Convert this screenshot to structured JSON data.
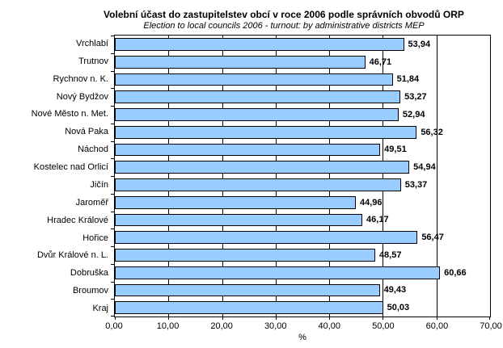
{
  "header": {
    "title": "Volební účast do zastupitelstev obcí v roce 2006 podle správních obvodů ORP",
    "subtitle": "Election to local councils 2006 - turnout: by administrative districts MEP"
  },
  "chart_data": {
    "type": "bar",
    "orientation": "horizontal",
    "title": "Volební účast do zastupitelstev obcí v roce 2006 podle správních obvodů ORP",
    "subtitle": "Election to local councils 2006 - turnout: by administrative districts MEP",
    "categories": [
      "Vrchlabí",
      "Trutnov",
      "Rychnov n. K.",
      "Nový Bydžov",
      "Nové Město n. Met.",
      "Nová Paka",
      "Náchod",
      "Kostelec nad Orlicí",
      "Jičín",
      "Jaroměř",
      "Hradec Králové",
      "Hořice",
      "Dvůr Králové n. L.",
      "Dobruška",
      "Broumov",
      "Kraj"
    ],
    "values": [
      53.94,
      46.71,
      51.84,
      53.27,
      52.94,
      56.32,
      49.51,
      54.94,
      53.37,
      44.96,
      46.17,
      56.47,
      48.57,
      60.66,
      49.43,
      50.03
    ],
    "value_labels": [
      "53,94",
      "46,71",
      "51,84",
      "53,27",
      "52,94",
      "56,32",
      "49,51",
      "54,94",
      "53,37",
      "44,96",
      "46,17",
      "56,47",
      "48,57",
      "60,66",
      "49,43",
      "50,03"
    ],
    "xlabel": "%",
    "ylabel": "",
    "xlim": [
      0,
      70
    ],
    "xticks": [
      0,
      10,
      20,
      30,
      40,
      50,
      60,
      70
    ],
    "xtick_labels": [
      "0,00",
      "10,00",
      "20,00",
      "30,00",
      "40,00",
      "50,00",
      "60,00",
      "70,00"
    ],
    "grid": true,
    "legend": false,
    "bar_color": "#99CCFF",
    "bar_border_color": "#000000",
    "gridline_color": "#000000",
    "plot_border_color": "#000000",
    "background_color": "#FFFFFF"
  }
}
